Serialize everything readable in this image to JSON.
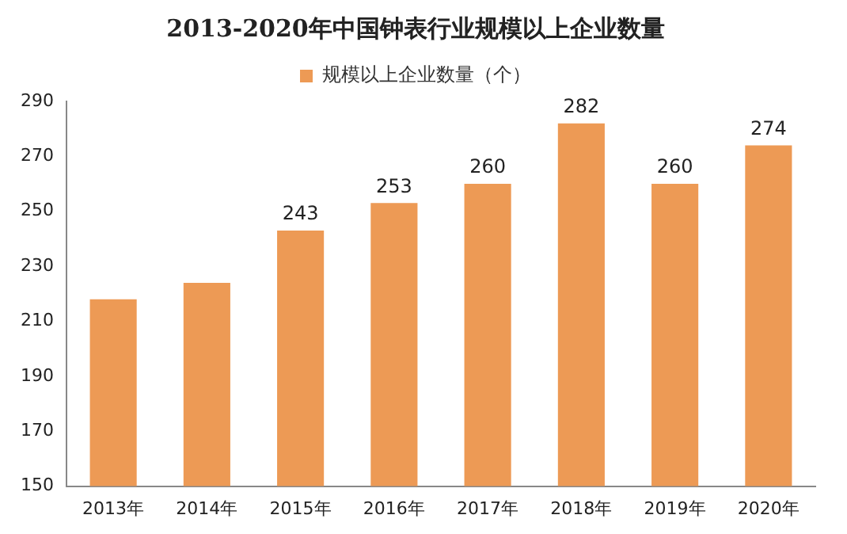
{
  "chart_data": {
    "type": "bar",
    "title": "2013-2020年中国钟表行业规模以上企业数量",
    "categories": [
      "2013年",
      "2014年",
      "2015年",
      "2016年",
      "2017年",
      "2018年",
      "2019年",
      "2020年"
    ],
    "series": [
      {
        "name": "规模以上企业数量（个）",
        "color": "#ed9a55",
        "values": [
          218,
          224,
          243,
          253,
          260,
          282,
          260,
          274
        ]
      }
    ],
    "value_labels": [
      null,
      null,
      "243",
      "253",
      "260",
      "282",
      "260",
      "274"
    ],
    "ylim": [
      150,
      290
    ],
    "yticks": [
      150,
      170,
      190,
      210,
      230,
      250,
      270,
      290
    ],
    "grid": false,
    "legend": "top"
  }
}
